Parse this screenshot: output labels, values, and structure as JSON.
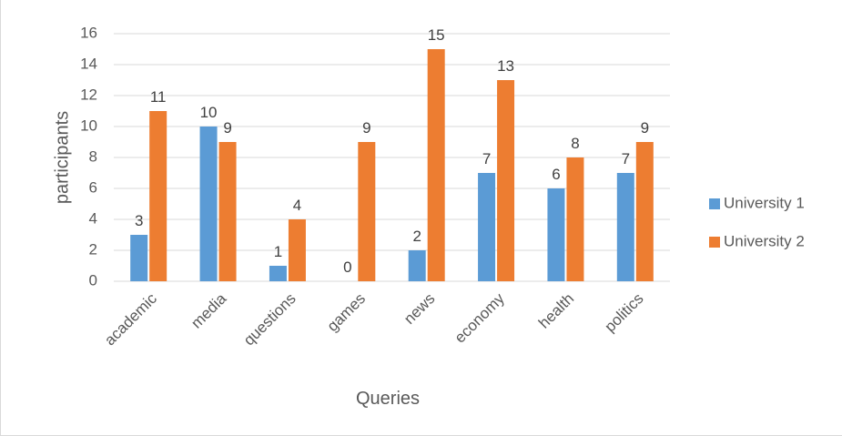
{
  "chart_data": {
    "type": "bar",
    "title": "",
    "xlabel": "Queries",
    "ylabel": "participants",
    "categories": [
      "academic",
      "media",
      "questions",
      "games",
      "news",
      "economy",
      "health",
      "politics"
    ],
    "series": [
      {
        "name": "University 1",
        "values": [
          3,
          10,
          1,
          0,
          2,
          7,
          6,
          7
        ],
        "color": "#5b9bd5"
      },
      {
        "name": "University 2",
        "values": [
          11,
          9,
          4,
          9,
          15,
          13,
          8,
          9
        ],
        "color": "#ed7d31"
      }
    ],
    "ylim": [
      0,
      16
    ],
    "yticks": [
      0,
      2,
      4,
      6,
      8,
      10,
      12,
      14,
      16
    ],
    "grid": true,
    "legend": "right",
    "gridline_color": "#d9d9d9"
  }
}
